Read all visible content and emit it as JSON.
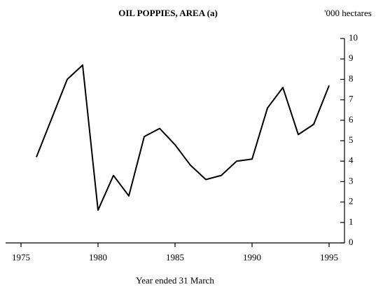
{
  "chart_data": {
    "type": "line",
    "title": "OIL POPPIES, AREA (a)",
    "y_unit_label": "'000 hectares",
    "x_label": "Year ended 31 March",
    "x": [
      1976,
      1977,
      1978,
      1979,
      1980,
      1981,
      1982,
      1983,
      1984,
      1985,
      1986,
      1987,
      1988,
      1989,
      1990,
      1991,
      1992,
      1993,
      1994,
      1995
    ],
    "series": [
      {
        "name": "Oil poppies area",
        "color": "#000000",
        "values": [
          4.2,
          6.1,
          8.0,
          8.7,
          1.6,
          3.3,
          2.3,
          5.2,
          5.6,
          4.8,
          3.8,
          3.1,
          3.3,
          4.0,
          4.1,
          6.6,
          7.6,
          5.3,
          5.8,
          7.7
        ]
      }
    ],
    "xlim": [
      1974,
      1996
    ],
    "xticks": [
      1975,
      1980,
      1985,
      1990,
      1995
    ],
    "ylim": [
      0,
      10
    ],
    "yticks": [
      0,
      1,
      2,
      3,
      4,
      5,
      6,
      7,
      8,
      9,
      10
    ],
    "grid": false
  }
}
